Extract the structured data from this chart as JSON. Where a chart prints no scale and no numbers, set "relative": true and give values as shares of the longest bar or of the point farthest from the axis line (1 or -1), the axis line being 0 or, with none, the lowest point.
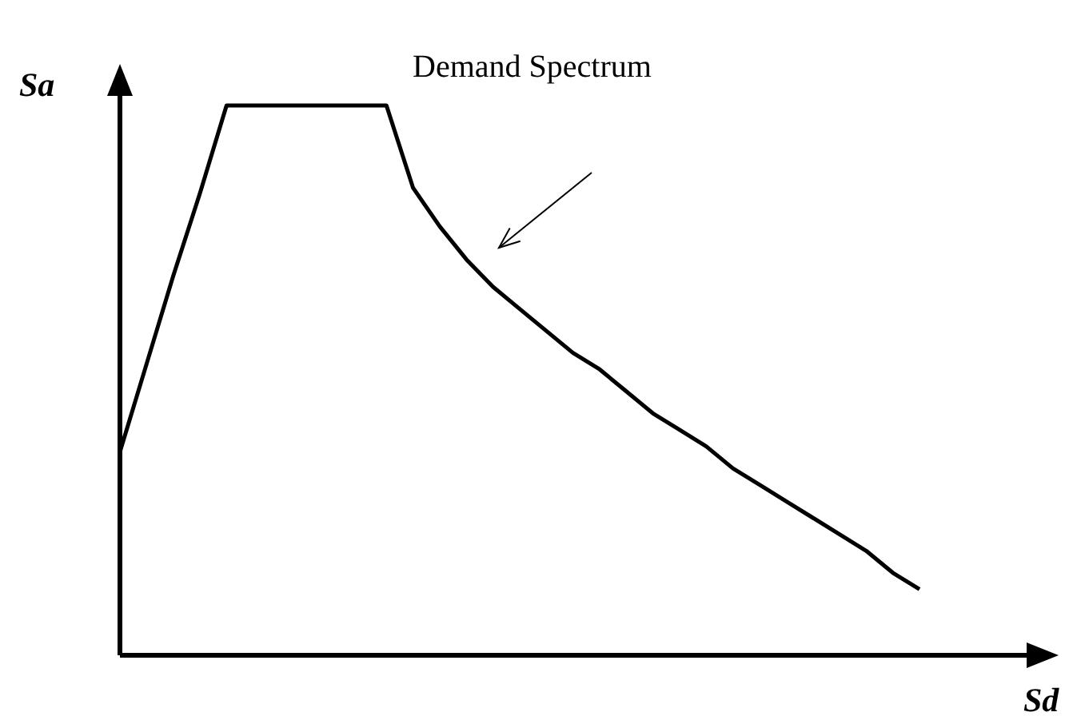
{
  "chart_data": {
    "type": "line",
    "relative": true,
    "xlabel": "Sd",
    "ylabel": "Sa",
    "marker": "none",
    "line_style": "solid",
    "categories": [
      null,
      null,
      null,
      null,
      null,
      null,
      null,
      null,
      null,
      null,
      null,
      null,
      null,
      null,
      null,
      null,
      null,
      null,
      null,
      null,
      null,
      null,
      null,
      null,
      null,
      null,
      null,
      null,
      null,
      null,
      null
    ],
    "series": [
      {
        "color": "#000000",
        "values": [
          0.37,
          0.53,
          0.69,
          0.84,
          1,
          1,
          1,
          1,
          1,
          1,
          1,
          0.85,
          0.78,
          0.72,
          0.67,
          0.63,
          0.59,
          0.55,
          0.52,
          0.48,
          0.44,
          0.41,
          0.38,
          0.34,
          0.31,
          0.28,
          0.25,
          0.22,
          0.19,
          0.15,
          0.12
        ]
      }
    ],
    "annotations": [
      "Demand Spectrum"
    ]
  }
}
